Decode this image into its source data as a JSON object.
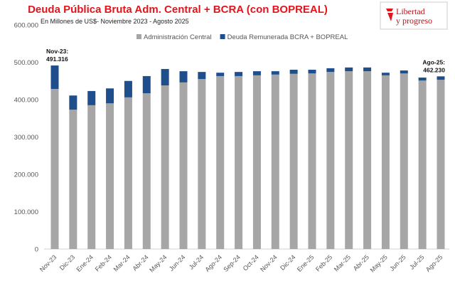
{
  "chart_data": {
    "type": "bar",
    "stacked": true,
    "title": "Deuda Pública Bruta Adm. Central + BCRA (con BOPREAL)",
    "subtitle": "En Millones de US$- Noviembre 2023 - Agosto 2025",
    "ylim": [
      0,
      600000
    ],
    "yticks": [
      "0",
      "100.000",
      "200.000",
      "300.000",
      "400.000",
      "500.000",
      "600.000"
    ],
    "ytick_values": [
      0,
      100000,
      200000,
      300000,
      400000,
      500000,
      600000
    ],
    "categories": [
      "Nov-23",
      "Dic-23",
      "Ene-24",
      "Feb-24",
      "Mar-24",
      "Abr-24",
      "May-24",
      "Jun-24",
      "Jul-24",
      "Ago-24",
      "Sep-24",
      "Oct-24",
      "Nov-24",
      "Dic-24",
      "Ene-25",
      "Feb-25",
      "Mar-25",
      "Abr-25",
      "May-25",
      "Jun-25",
      "Jul-25",
      "Ago-25"
    ],
    "series": [
      {
        "name": "Administración Central",
        "color": "#a6a6a6",
        "values": [
          428600,
          373000,
          385000,
          390000,
          406000,
          417000,
          438000,
          446000,
          455000,
          463000,
          463000,
          465000,
          467000,
          469000,
          470000,
          474000,
          476000,
          476000,
          465000,
          470000,
          451000,
          453000
        ]
      },
      {
        "name": "Deuda Remunerada BCRA + BOPREAL",
        "color": "#1f4e8c",
        "values": [
          62716,
          38000,
          38000,
          40000,
          44000,
          46000,
          44000,
          30000,
          19000,
          9000,
          11000,
          11000,
          9000,
          11000,
          10000,
          10000,
          10000,
          10000,
          7000,
          8000,
          8000,
          9230
        ]
      }
    ],
    "legend_position": "top-center",
    "annotations": [
      {
        "category": "Nov-23",
        "label": "Nov-23:",
        "value": "491.316"
      },
      {
        "category": "Ago-25",
        "label": "Ago-25:",
        "value": "462.230"
      }
    ]
  },
  "logo": {
    "text_line1": "Libertad",
    "text_line2": "y progreso"
  }
}
